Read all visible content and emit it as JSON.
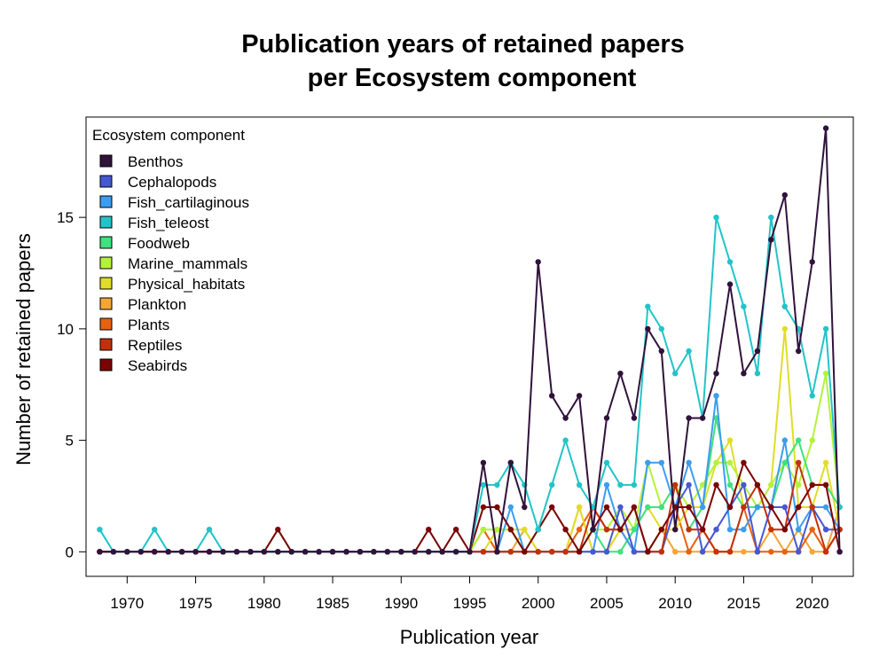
{
  "chart_data": {
    "type": "line",
    "title": [
      "Publication years of retained papers",
      "per Ecosystem component"
    ],
    "xlabel": "Publication year",
    "ylabel": "Number of retained papers",
    "xlim": [
      1967,
      2023
    ],
    "ylim": [
      -1.1,
      19.5
    ],
    "xticks": [
      1970,
      1975,
      1980,
      1985,
      1990,
      1995,
      2000,
      2005,
      2010,
      2015,
      2020
    ],
    "yticks": [
      0,
      5,
      10,
      15
    ],
    "grid": false,
    "legend": {
      "title": "Ecosystem component",
      "position": "top-left"
    },
    "x": [
      1968,
      1969,
      1970,
      1971,
      1972,
      1973,
      1974,
      1975,
      1976,
      1977,
      1978,
      1979,
      1980,
      1981,
      1982,
      1983,
      1984,
      1985,
      1986,
      1987,
      1988,
      1989,
      1990,
      1991,
      1992,
      1993,
      1994,
      1995,
      1996,
      1997,
      1998,
      1999,
      2000,
      2001,
      2002,
      2003,
      2004,
      2005,
      2006,
      2007,
      2008,
      2009,
      2010,
      2011,
      2012,
      2013,
      2014,
      2015,
      2016,
      2017,
      2018,
      2019,
      2020,
      2021,
      2022
    ],
    "series": [
      {
        "name": "Plankton",
        "color": "#f5a536",
        "values": [
          0,
          0,
          0,
          0,
          0,
          0,
          0,
          0,
          0,
          0,
          0,
          0,
          0,
          0,
          0,
          0,
          0,
          0,
          0,
          0,
          0,
          0,
          0,
          0,
          0,
          0,
          0,
          0,
          1,
          0,
          0,
          1,
          0,
          0,
          0,
          2,
          0,
          0,
          1,
          0,
          0,
          1,
          0,
          0,
          0,
          0,
          0,
          0,
          0,
          1,
          0,
          1,
          0,
          0,
          2
        ]
      },
      {
        "name": "Plants",
        "color": "#e8610f",
        "values": [
          0,
          0,
          0,
          0,
          0,
          0,
          0,
          0,
          0,
          0,
          0,
          0,
          0,
          0,
          0,
          0,
          0,
          0,
          0,
          0,
          0,
          0,
          0,
          0,
          0,
          0,
          0,
          0,
          1,
          0,
          0,
          0,
          0,
          0,
          0,
          1,
          2,
          1,
          1,
          0,
          0,
          0,
          2,
          0,
          1,
          0,
          0,
          2,
          0,
          0,
          0,
          0,
          1,
          0,
          1
        ]
      },
      {
        "name": "Physical_habitats",
        "color": "#e0dd28",
        "values": [
          0,
          0,
          0,
          0,
          0,
          0,
          0,
          0,
          0,
          0,
          0,
          0,
          0,
          0,
          0,
          0,
          0,
          0,
          0,
          0,
          0,
          0,
          0,
          0,
          0,
          0,
          0,
          0,
          0,
          1,
          1,
          1,
          0,
          0,
          0,
          2,
          0,
          0,
          1,
          1,
          2,
          1,
          1,
          2,
          2,
          4,
          5,
          2,
          2,
          3,
          10,
          2,
          2,
          4,
          1
        ]
      },
      {
        "name": "Marine_mammals",
        "color": "#b4f23a",
        "values": [
          0,
          0,
          0,
          0,
          0,
          0,
          0,
          0,
          0,
          0,
          0,
          0,
          0,
          0,
          0,
          0,
          0,
          0,
          0,
          0,
          0,
          0,
          0,
          0,
          0,
          0,
          0,
          0,
          1,
          1,
          1,
          0,
          0,
          0,
          0,
          0,
          1,
          1,
          2,
          1,
          4,
          2,
          3,
          2,
          3,
          4,
          4,
          3,
          2,
          3,
          4,
          3,
          5,
          8,
          2
        ]
      },
      {
        "name": "Foodweb",
        "color": "#3de37d",
        "values": [
          0,
          0,
          0,
          0,
          0,
          0,
          0,
          0,
          0,
          0,
          0,
          0,
          0,
          0,
          0,
          0,
          0,
          0,
          0,
          0,
          0,
          0,
          0,
          0,
          0,
          0,
          0,
          0,
          0,
          0,
          0,
          0,
          0,
          0,
          0,
          0,
          1,
          0,
          0,
          1,
          2,
          2,
          3,
          1,
          2,
          6,
          3,
          2,
          2,
          2,
          4,
          5,
          3,
          3,
          2
        ]
      },
      {
        "name": "Fish_cartilaginous",
        "color": "#3d9cf0",
        "values": [
          0,
          0,
          0,
          0,
          0,
          0,
          0,
          0,
          0,
          0,
          0,
          0,
          0,
          0,
          0,
          0,
          0,
          0,
          0,
          0,
          0,
          0,
          0,
          0,
          0,
          0,
          0,
          0,
          0,
          0,
          2,
          0,
          0,
          0,
          0,
          0,
          0,
          3,
          1,
          0,
          4,
          4,
          2,
          4,
          2,
          7,
          1,
          1,
          2,
          2,
          5,
          1,
          2,
          2,
          1
        ]
      },
      {
        "name": "Cephalopods",
        "color": "#4658d2",
        "values": [
          0,
          0,
          0,
          0,
          0,
          0,
          0,
          0,
          0,
          0,
          0,
          0,
          0,
          0,
          0,
          0,
          0,
          0,
          0,
          0,
          0,
          0,
          0,
          0,
          0,
          0,
          0,
          0,
          0,
          0,
          0,
          0,
          0,
          0,
          0,
          0,
          0,
          0,
          2,
          0,
          0,
          0,
          2,
          3,
          0,
          1,
          2,
          3,
          0,
          2,
          2,
          0,
          2,
          1,
          1
        ]
      },
      {
        "name": "Reptiles",
        "color": "#c2310a",
        "values": [
          0,
          0,
          0,
          0,
          0,
          0,
          0,
          0,
          0,
          0,
          0,
          0,
          0,
          0,
          0,
          0,
          0,
          0,
          0,
          0,
          0,
          0,
          0,
          0,
          0,
          0,
          0,
          0,
          0,
          0,
          0,
          0,
          0,
          0,
          0,
          0,
          2,
          1,
          1,
          2,
          0,
          0,
          3,
          1,
          1,
          0,
          0,
          2,
          3,
          1,
          1,
          4,
          2,
          0,
          1
        ]
      },
      {
        "name": "Seabirds",
        "color": "#7a0403",
        "values": [
          0,
          0,
          0,
          0,
          0,
          0,
          0,
          0,
          0,
          0,
          0,
          0,
          0,
          1,
          0,
          0,
          0,
          0,
          0,
          0,
          0,
          0,
          0,
          0,
          1,
          0,
          1,
          0,
          2,
          2,
          1,
          0,
          1,
          2,
          1,
          0,
          1,
          2,
          1,
          2,
          0,
          1,
          2,
          2,
          1,
          3,
          2,
          4,
          3,
          2,
          1,
          2,
          3,
          3,
          0
        ]
      },
      {
        "name": "Fish_teleost",
        "color": "#22c4c9",
        "values": [
          1,
          0,
          0,
          0,
          1,
          0,
          0,
          0,
          1,
          0,
          0,
          0,
          0,
          0,
          0,
          0,
          0,
          0,
          0,
          0,
          0,
          0,
          0,
          0,
          0,
          0,
          0,
          0,
          3,
          3,
          4,
          3,
          1,
          3,
          5,
          3,
          2,
          4,
          3,
          3,
          11,
          10,
          8,
          9,
          6,
          15,
          13,
          11,
          8,
          15,
          11,
          10,
          7,
          10,
          2
        ]
      },
      {
        "name": "Benthos",
        "color": "#30123b",
        "values": [
          0,
          0,
          0,
          0,
          0,
          0,
          0,
          0,
          0,
          0,
          0,
          0,
          0,
          0,
          0,
          0,
          0,
          0,
          0,
          0,
          0,
          0,
          0,
          0,
          0,
          0,
          0,
          0,
          4,
          0,
          4,
          2,
          13,
          7,
          6,
          7,
          1,
          6,
          8,
          6,
          10,
          9,
          1,
          6,
          6,
          8,
          12,
          8,
          9,
          14,
          16,
          9,
          13,
          19,
          0
        ]
      }
    ],
    "legend_order": [
      "Benthos",
      "Cephalopods",
      "Fish_cartilaginous",
      "Fish_teleost",
      "Foodweb",
      "Marine_mammals",
      "Physical_habitats",
      "Plankton",
      "Plants",
      "Reptiles",
      "Seabirds"
    ]
  }
}
